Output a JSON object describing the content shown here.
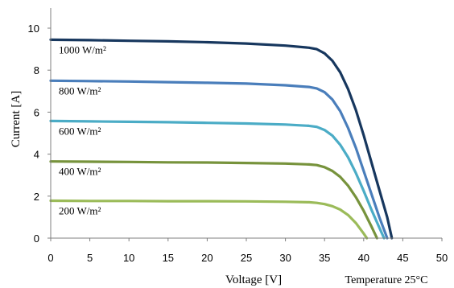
{
  "chart_data": {
    "type": "line",
    "title": "",
    "xlabel": "Voltage [V]",
    "ylabel": "Current [A]",
    "xlim": [
      0,
      50
    ],
    "ylim": [
      0,
      10
    ],
    "xticks": [
      0,
      5,
      10,
      15,
      20,
      25,
      30,
      35,
      40,
      45,
      50
    ],
    "yticks": [
      0,
      2,
      4,
      6,
      8,
      10
    ],
    "grid": false,
    "legend": "none",
    "note": "Temperature 25°C",
    "series": [
      {
        "name": "1000 W/m²",
        "color": "#17375e",
        "x": [
          0,
          5,
          10,
          15,
          20,
          25,
          30,
          33,
          34,
          35,
          36,
          37,
          38,
          39,
          40,
          41,
          42,
          43,
          43.6
        ],
        "y": [
          9.45,
          9.43,
          9.4,
          9.37,
          9.33,
          9.27,
          9.17,
          9.07,
          9.0,
          8.8,
          8.45,
          7.9,
          7.1,
          6.1,
          4.9,
          3.6,
          2.3,
          1.0,
          0
        ]
      },
      {
        "name": "800 W/m²",
        "color": "#4a7ebb",
        "x": [
          0,
          5,
          10,
          15,
          20,
          25,
          30,
          33,
          34,
          35,
          36,
          37,
          38,
          39,
          40,
          41,
          42,
          43.0
        ],
        "y": [
          7.5,
          7.48,
          7.46,
          7.43,
          7.4,
          7.36,
          7.28,
          7.2,
          7.13,
          6.95,
          6.6,
          6.05,
          5.25,
          4.3,
          3.2,
          2.1,
          1.0,
          0
        ]
      },
      {
        "name": "600 W/m²",
        "color": "#4bacc6",
        "x": [
          0,
          5,
          10,
          15,
          20,
          25,
          30,
          33,
          34,
          35,
          36,
          37,
          38,
          39,
          40,
          41,
          42,
          42.6
        ],
        "y": [
          5.58,
          5.56,
          5.54,
          5.52,
          5.49,
          5.46,
          5.41,
          5.35,
          5.3,
          5.15,
          4.88,
          4.45,
          3.85,
          3.1,
          2.25,
          1.35,
          0.5,
          0
        ]
      },
      {
        "name": "400 W/m²",
        "color": "#77933c",
        "x": [
          0,
          5,
          10,
          15,
          20,
          25,
          30,
          33,
          34,
          35,
          36,
          37,
          38,
          39,
          40,
          41,
          41.7
        ],
        "y": [
          3.65,
          3.64,
          3.63,
          3.61,
          3.6,
          3.58,
          3.55,
          3.51,
          3.48,
          3.38,
          3.2,
          2.92,
          2.5,
          1.95,
          1.3,
          0.55,
          0
        ]
      },
      {
        "name": "200 W/m²",
        "color": "#9bbb59",
        "x": [
          0,
          5,
          10,
          15,
          20,
          25,
          30,
          33,
          34,
          35,
          36,
          37,
          38,
          39,
          40,
          40.4
        ],
        "y": [
          1.78,
          1.77,
          1.77,
          1.76,
          1.76,
          1.75,
          1.73,
          1.71,
          1.68,
          1.62,
          1.52,
          1.36,
          1.1,
          0.72,
          0.22,
          0
        ]
      }
    ]
  }
}
